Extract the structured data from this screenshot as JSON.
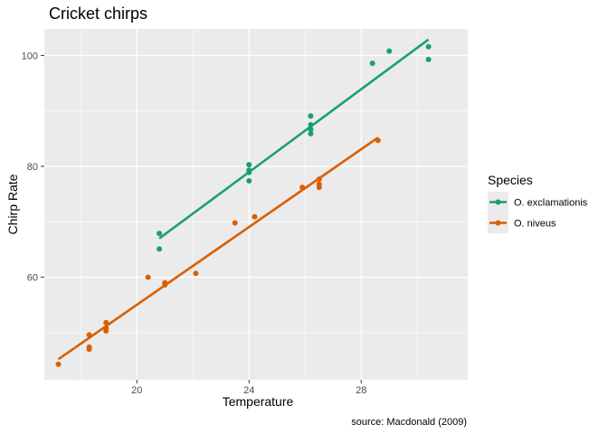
{
  "chart_data": {
    "type": "scatter",
    "title": "Cricket chirps",
    "xlabel": "Temperature",
    "ylabel": "Chirp Rate",
    "caption": "source: Macdonald (2009)",
    "xlim": [
      16.7,
      31.8
    ],
    "ylim": [
      41.5,
      104.8
    ],
    "x_ticks": [
      20,
      24,
      28
    ],
    "y_ticks": [
      60,
      80,
      100
    ],
    "grid": true,
    "legend": {
      "title": "Species",
      "position": "right"
    },
    "trendline": "linear",
    "series": [
      {
        "name": "O. exclamationis",
        "color": "#1b9e77",
        "points": [
          [
            20.8,
            67.9
          ],
          [
            20.8,
            65.1
          ],
          [
            24.0,
            80.3
          ],
          [
            24.0,
            79.3
          ],
          [
            24.0,
            78.9
          ],
          [
            24.0,
            77.4
          ],
          [
            26.2,
            89.1
          ],
          [
            26.2,
            87.5
          ],
          [
            26.2,
            86.7
          ],
          [
            26.2,
            85.9
          ],
          [
            28.4,
            98.6
          ],
          [
            29.0,
            100.8
          ],
          [
            30.4,
            101.6
          ],
          [
            30.4,
            99.3
          ]
        ],
        "fit": [
          [
            20.8,
            67.0
          ],
          [
            30.4,
            102.9
          ]
        ]
      },
      {
        "name": "O. niveus",
        "color": "#d95f02",
        "points": [
          [
            17.2,
            44.3
          ],
          [
            18.3,
            49.6
          ],
          [
            18.3,
            47.4
          ],
          [
            18.3,
            47.0
          ],
          [
            18.9,
            51.8
          ],
          [
            18.9,
            50.8
          ],
          [
            18.9,
            50.3
          ],
          [
            20.4,
            60.0
          ],
          [
            21.0,
            59.0
          ],
          [
            21.0,
            58.6
          ],
          [
            22.1,
            60.7
          ],
          [
            23.5,
            69.8
          ],
          [
            24.2,
            70.9
          ],
          [
            25.9,
            76.2
          ],
          [
            26.5,
            77.7
          ],
          [
            26.5,
            76.8
          ],
          [
            26.5,
            76.2
          ],
          [
            28.6,
            84.7
          ]
        ],
        "fit": [
          [
            17.2,
            45.2
          ],
          [
            28.6,
            85.2
          ]
        ]
      }
    ]
  }
}
